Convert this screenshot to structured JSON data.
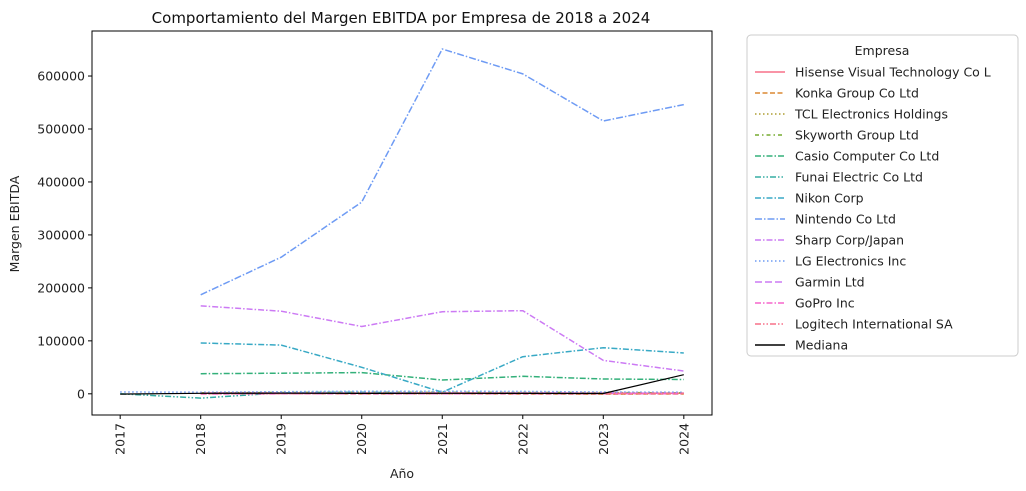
{
  "chart_data": {
    "type": "line",
    "title": "Comportamiento del Margen EBITDA por Empresa de 2018 a 2024",
    "xlabel": "Año",
    "ylabel": "Margen EBITDA",
    "x": [
      2017,
      2018,
      2019,
      2020,
      2021,
      2022,
      2023,
      2024
    ],
    "x_tick_labels": [
      "2017",
      "2018",
      "2019",
      "2020",
      "2021",
      "2022",
      "2023",
      "2024"
    ],
    "ylim": [
      -40000,
      685000
    ],
    "y_ticks": [
      0,
      100000,
      200000,
      300000,
      400000,
      500000,
      600000
    ],
    "y_tick_labels": [
      "0",
      "100000",
      "200000",
      "300000",
      "400000",
      "500000",
      "600000"
    ],
    "grid": false,
    "legend": {
      "title": "Empresa",
      "placement": "outside-right"
    },
    "series": [
      {
        "name": "Hisense Visual Technology Co L",
        "color": "#f77189",
        "dash": "solid",
        "values": [
          null,
          1500,
          1800,
          1600,
          1700,
          1500,
          1200,
          1000
        ]
      },
      {
        "name": "Konka Group Co Ltd",
        "color": "#dc8932",
        "dash": "dashed",
        "values": [
          null,
          300,
          500,
          -200,
          200,
          -300,
          -500,
          -400
        ]
      },
      {
        "name": "TCL Electronics Holdings",
        "color": "#ae9d31",
        "dash": "dotted",
        "values": [
          null,
          1000,
          1200,
          1500,
          2000,
          1800,
          1600,
          1700
        ]
      },
      {
        "name": "Skyworth Group Ltd",
        "color": "#77ab31",
        "dash": "dashdot-sparse",
        "values": [
          null,
          2000,
          2500,
          3000,
          2800,
          2500,
          2200,
          2000
        ]
      },
      {
        "name": "Casio Computer Co Ltd",
        "color": "#33b07a",
        "dash": "dashdot",
        "values": [
          null,
          38000,
          39000,
          40000,
          26000,
          33000,
          28000,
          27000
        ]
      },
      {
        "name": "Funai Electric Co Ltd",
        "color": "#36ada4",
        "dash": "dashdotdot",
        "values": [
          0,
          -8000,
          2000,
          3000,
          1000,
          null,
          null,
          null
        ]
      },
      {
        "name": "Nikon Corp",
        "color": "#38a9c5",
        "dash": "dashdot",
        "values": [
          null,
          96000,
          92000,
          50000,
          3000,
          70000,
          87000,
          77000
        ]
      },
      {
        "name": "Nintendo Co Ltd",
        "color": "#6e9bf4",
        "dash": "dashdot-long",
        "values": [
          null,
          187000,
          258000,
          362000,
          651000,
          604000,
          515000,
          546000
        ]
      },
      {
        "name": "Sharp Corp/Japan",
        "color": "#cc7af4",
        "dash": "dashdot",
        "values": [
          null,
          166000,
          156000,
          127000,
          155000,
          157000,
          63000,
          43000
        ]
      },
      {
        "name": "LG Electronics Inc",
        "color": "#6e9bf4",
        "dash": "dotted",
        "values": [
          3500,
          3000,
          4000,
          5000,
          5000,
          4500,
          3500,
          3000
        ]
      },
      {
        "name": "Garmin Ltd",
        "color": "#cc7af4",
        "dash": "dashed-long",
        "values": [
          null,
          1200,
          1300,
          1400,
          1600,
          1500,
          1300,
          1400
        ]
      },
      {
        "name": "GoPro Inc",
        "color": "#f565cc",
        "dash": "dashdot",
        "values": [
          null,
          -300,
          100,
          200,
          300,
          200,
          100,
          50
        ]
      },
      {
        "name": "Logitech International SA",
        "color": "#f77189",
        "dash": "dashdotdot",
        "values": [
          null,
          500,
          600,
          900,
          1100,
          800,
          700,
          750
        ]
      },
      {
        "name": "Mediana",
        "color": "#000000",
        "dash": "solid",
        "values": [
          -500,
          1000,
          1200,
          800,
          1000,
          800,
          500,
          36000
        ]
      }
    ]
  }
}
